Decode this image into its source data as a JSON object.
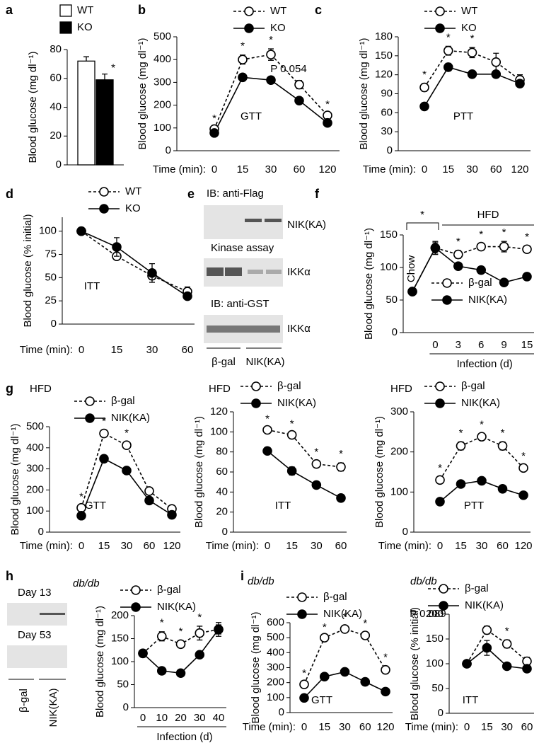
{
  "chart_data": [
    {
      "type": "bar",
      "panel": "a",
      "ylabel": "Blood glucose (mg dl⁻¹)",
      "ylim": [
        0,
        80
      ],
      "yticks": [
        0,
        20,
        40,
        60,
        80
      ],
      "legend": "above-left",
      "series": [
        {
          "name": "WT",
          "color": "#000000",
          "fill": "#ffffff",
          "values": [
            72
          ],
          "errors": [
            3
          ]
        },
        {
          "name": "KO",
          "color": "#000000",
          "fill": "#000000",
          "values": [
            59
          ],
          "errors": [
            4
          ],
          "significance": [
            "*"
          ]
        }
      ],
      "annotations": []
    },
    {
      "type": "line",
      "panel": "b",
      "ylabel": "Blood glucose (mg dl⁻¹)",
      "xlabel": "Time (min):",
      "categories": [
        "0",
        "15",
        "30",
        "60",
        "120"
      ],
      "ylim": [
        0,
        500
      ],
      "yticks": [
        0,
        100,
        200,
        300,
        400,
        500
      ],
      "legend": "above-right",
      "series": [
        {
          "name": "WT",
          "color": "#000000",
          "fill": "#ffffff",
          "dash": true,
          "values": [
            95,
            400,
            422,
            290,
            155
          ],
          "errors": [
            8,
            20,
            25,
            18,
            10
          ],
          "significance": [
            "*",
            "*",
            "*",
            null,
            "*"
          ]
        },
        {
          "name": "KO",
          "color": "#000000",
          "fill": "#000000",
          "dash": false,
          "values": [
            78,
            322,
            310,
            220,
            122
          ],
          "errors": [
            5,
            10,
            15,
            10,
            6
          ]
        }
      ],
      "annotations": [
        "P 0.054",
        "GTT"
      ]
    },
    {
      "type": "line",
      "panel": "c",
      "ylabel": "Blood glucose (mg dl⁻¹)",
      "xlabel": "Time (min):",
      "categories": [
        "0",
        "15",
        "30",
        "60",
        "120"
      ],
      "ylim": [
        0,
        180
      ],
      "yticks": [
        0,
        30,
        60,
        90,
        120,
        150,
        180
      ],
      "legend": "above-right",
      "series": [
        {
          "name": "WT",
          "color": "#000000",
          "fill": "#ffffff",
          "dash": true,
          "values": [
            100,
            158,
            155,
            140,
            112
          ],
          "errors": [
            6,
            7,
            8,
            14,
            8
          ],
          "significance": [
            "*",
            "*",
            "*",
            null,
            null
          ]
        },
        {
          "name": "KO",
          "color": "#000000",
          "fill": "#000000",
          "dash": false,
          "values": [
            70,
            132,
            121,
            121,
            106
          ],
          "errors": [
            4,
            6,
            4,
            5,
            4
          ]
        }
      ],
      "annotations": [
        "PTT"
      ]
    },
    {
      "type": "line",
      "panel": "d",
      "ylabel": "Blood glucose (% initial)",
      "xlabel": "Time (min):",
      "categories": [
        "0",
        "15",
        "30",
        "60"
      ],
      "ylim": [
        0,
        115
      ],
      "yticks": [
        0,
        25,
        50,
        75,
        100
      ],
      "legend": "above-right",
      "series": [
        {
          "name": "WT",
          "color": "#000000",
          "fill": "#ffffff",
          "dash": true,
          "values": [
            100,
            73,
            52,
            35
          ],
          "errors": [
            0,
            3,
            4,
            5
          ]
        },
        {
          "name": "KO",
          "color": "#000000",
          "fill": "#000000",
          "dash": false,
          "values": [
            100,
            83,
            55,
            30
          ],
          "errors": [
            0,
            10,
            10,
            3
          ]
        }
      ],
      "annotations": [
        "ITT"
      ]
    },
    {
      "type": "line",
      "panel": "f",
      "ylabel": "Blood glucose (mg dl⁻¹)",
      "xtitle": "Infection (d)",
      "categories": [
        null,
        "0",
        "3",
        "6",
        "9",
        "15"
      ],
      "ylim": [
        0,
        150
      ],
      "yticks": [
        0,
        50,
        100,
        150
      ],
      "legend": "bottom-right",
      "series": [
        {
          "name": "β-gal",
          "color": "#000000",
          "fill": "#ffffff",
          "dash": true,
          "values": [
            63,
            130,
            120,
            132,
            132,
            128
          ],
          "errors": [
            0,
            10,
            6,
            5,
            8,
            5
          ],
          "significance": [
            null,
            null,
            "*",
            "*",
            "*",
            "*"
          ]
        },
        {
          "name": "NIK(KA)",
          "color": "#000000",
          "fill": "#000000",
          "dash": false,
          "values": [
            63,
            130,
            102,
            96,
            77,
            86
          ],
          "errors": [
            0,
            8,
            5,
            4,
            3,
            5
          ]
        }
      ],
      "annotations": [
        "*",
        "HFD",
        "Chow"
      ]
    },
    {
      "type": "line",
      "panel": "g",
      "title": "HFD",
      "ylabel": "Blood glucose (mg dl⁻¹)",
      "xlabel": "Time (min):",
      "categories": [
        "0",
        "15",
        "30",
        "60",
        "120"
      ],
      "ylim": [
        0,
        500
      ],
      "yticks": [
        0,
        100,
        200,
        300,
        400,
        500
      ],
      "legend": "above-right",
      "series": [
        {
          "name": "β-gal",
          "color": "#000000",
          "fill": "#ffffff",
          "dash": true,
          "values": [
            115,
            468,
            412,
            195,
            110
          ],
          "errors": [
            10,
            15,
            15,
            10,
            8
          ],
          "significance": [
            "*",
            "*",
            "*",
            null,
            null
          ]
        },
        {
          "name": "NIK(KA)",
          "color": "#000000",
          "fill": "#000000",
          "dash": false,
          "values": [
            78,
            348,
            292,
            150,
            82
          ],
          "errors": [
            5,
            15,
            15,
            8,
            5
          ]
        }
      ],
      "annotations": [
        "GTT"
      ]
    },
    {
      "type": "line",
      "title": "HFD",
      "ylabel": "Blood glucose (mg dl⁻¹)",
      "xlabel": "Time (min):",
      "categories": [
        "0",
        "15",
        "30",
        "60"
      ],
      "ylim": [
        0,
        120
      ],
      "yticks": [
        0,
        20,
        40,
        60,
        80,
        100,
        120
      ],
      "legend": "above-right",
      "series": [
        {
          "name": "β-gal",
          "color": "#000000",
          "fill": "#ffffff",
          "dash": true,
          "values": [
            102,
            97,
            68,
            65
          ],
          "errors": [
            2,
            2,
            3,
            4
          ],
          "significance": [
            "*",
            "*",
            "*",
            "*"
          ]
        },
        {
          "name": "NIK(KA)",
          "color": "#000000",
          "fill": "#000000",
          "dash": false,
          "values": [
            81,
            61,
            47,
            34
          ],
          "errors": [
            3,
            4,
            3,
            3
          ]
        }
      ],
      "annotations": [
        "ITT"
      ]
    },
    {
      "type": "line",
      "title": "HFD",
      "ylabel": "Blood glucose (mg dl⁻¹)",
      "xlabel": "Time (min):",
      "categories": [
        "0",
        "15",
        "30",
        "60",
        "120"
      ],
      "ylim": [
        0,
        300
      ],
      "yticks": [
        0,
        100,
        200,
        300
      ],
      "legend": "above-right",
      "series": [
        {
          "name": "β-gal",
          "color": "#000000",
          "fill": "#ffffff",
          "dash": true,
          "values": [
            130,
            215,
            238,
            215,
            160
          ],
          "errors": [
            8,
            10,
            8,
            10,
            8
          ],
          "significance": [
            "*",
            "*",
            "*",
            "*",
            "*"
          ]
        },
        {
          "name": "NIK(KA)",
          "color": "#000000",
          "fill": "#000000",
          "dash": false,
          "values": [
            76,
            120,
            128,
            108,
            92
          ],
          "errors": [
            4,
            3,
            4,
            4,
            3
          ]
        }
      ],
      "annotations": [
        "PTT"
      ]
    },
    {
      "type": "line",
      "title": "db/db",
      "ylabel": "Blood glucose (mg dl⁻¹)",
      "xtitle": "Infection (d)",
      "categories": [
        "0",
        "10",
        "20",
        "30",
        "40"
      ],
      "ylim": [
        0,
        200
      ],
      "yticks": [
        0,
        50,
        100,
        150,
        200
      ],
      "legend": "above-right",
      "series": [
        {
          "name": "β-gal",
          "color": "#000000",
          "fill": "#ffffff",
          "dash": true,
          "values": [
            118,
            155,
            138,
            162,
            170
          ],
          "errors": [
            8,
            10,
            8,
            15,
            15
          ],
          "significance": [
            null,
            "*",
            "*",
            "*",
            null
          ]
        },
        {
          "name": "NIK(KA)",
          "color": "#000000",
          "fill": "#000000",
          "dash": false,
          "values": [
            118,
            80,
            75,
            115,
            170
          ],
          "errors": [
            5,
            3,
            3,
            4,
            10
          ]
        }
      ],
      "annotations": []
    },
    {
      "type": "line",
      "panel": "i",
      "title": "db/db",
      "ylabel": "Blood glucose (mg dl⁻¹)",
      "xlabel": "Time (min):",
      "categories": [
        "0",
        "15",
        "30",
        "60",
        "120"
      ],
      "ylim": [
        0,
        600
      ],
      "yticks": [
        0,
        100,
        200,
        300,
        400,
        500,
        600
      ],
      "legend": "above-right",
      "series": [
        {
          "name": "β-gal",
          "color": "#000000",
          "fill": "#ffffff",
          "dash": true,
          "values": [
            188,
            500,
            558,
            515,
            285
          ],
          "errors": [
            15,
            10,
            20,
            20,
            25
          ],
          "significance": [
            "*",
            "*",
            "*",
            "*",
            "*"
          ]
        },
        {
          "name": "NIK(KA)",
          "color": "#000000",
          "fill": "#000000",
          "dash": false,
          "values": [
            98,
            240,
            272,
            205,
            140
          ],
          "errors": [
            5,
            10,
            10,
            15,
            8
          ]
        }
      ],
      "annotations": [
        "GTT"
      ]
    },
    {
      "type": "line",
      "title": "db/db",
      "ylabel": "Blood glucose (% initial)",
      "xlabel": "Time (min):",
      "categories": [
        "0",
        "15",
        "30",
        "60"
      ],
      "ylim": [
        0,
        200
      ],
      "yticks": [
        0,
        50,
        100,
        150,
        200
      ],
      "legend": "above-right",
      "series": [
        {
          "name": "β-gal",
          "color": "#000000",
          "fill": "#ffffff",
          "dash": true,
          "values": [
            100,
            168,
            140,
            105
          ],
          "errors": [
            0,
            8,
            8,
            8
          ],
          "significance": [
            null,
            null,
            "*",
            null
          ]
        },
        {
          "name": "NIK(KA)",
          "color": "#000000",
          "fill": "#000000",
          "dash": false,
          "values": [
            100,
            132,
            95,
            90
          ],
          "errors": [
            0,
            15,
            5,
            5
          ]
        }
      ],
      "annotations": [
        "P 0.089",
        "ITT"
      ]
    }
  ],
  "blots": [
    {
      "panel": "e",
      "labels": [
        "IB: anti-Flag",
        "NIK(KA)",
        "Kinase assay",
        "IKKα",
        "IB: anti-GST",
        "IKKα",
        "β-gal",
        "NIK(KA)"
      ]
    },
    {
      "panel": "h",
      "labels": [
        "Day 13",
        "Day 53",
        "β-gal",
        "NIK(KA)"
      ]
    }
  ]
}
